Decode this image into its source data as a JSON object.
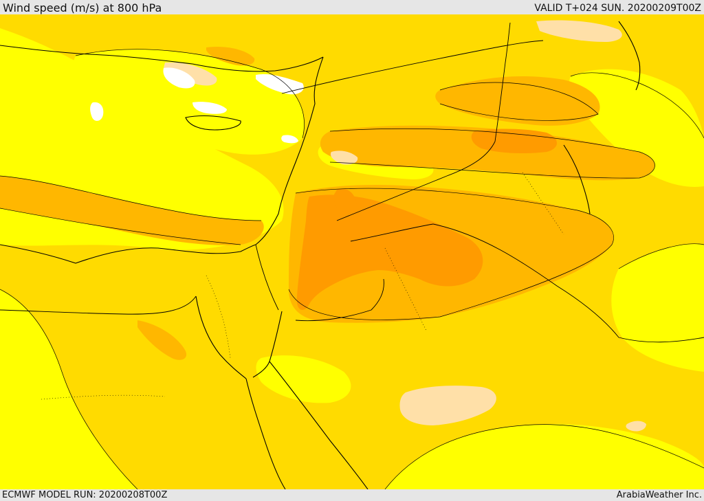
{
  "header": {
    "title": "Wind speed (m/s) at 800 hPa",
    "valid": "VALID T+024 SUN. 20200209T00Z"
  },
  "footer": {
    "model_run": "ECMWF MODEL RUN: 20200208T00Z",
    "credit": "ArabiaWeather Inc."
  },
  "colors": {
    "level_calm": "#ffffff",
    "level_light": "#ffe0a8",
    "level_low": "#ffff00",
    "level_mid": "#ffdb00",
    "level_high": "#ffb700",
    "level_max": "#ff9b00",
    "coastline": "#000000"
  }
}
